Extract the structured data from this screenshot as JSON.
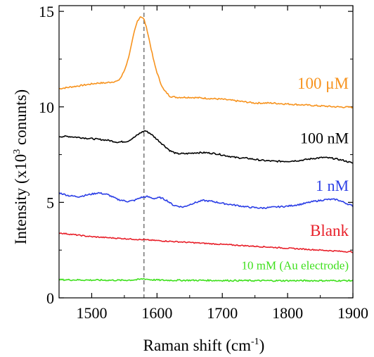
{
  "chart_data": {
    "type": "line",
    "xlabel": "Raman shift (cm",
    "xlabel_sup": "-1",
    "xlabel_end": ")",
    "ylabel": "Intensity (x10",
    "ylabel_sup": "3",
    "ylabel_end": "  conunts)",
    "xlim": [
      1450,
      1900
    ],
    "ylim": [
      0,
      15.3
    ],
    "xticks": [
      1500,
      1600,
      1700,
      1800,
      1900
    ],
    "yticks": [
      0,
      5,
      10,
      15
    ],
    "grid": false,
    "reference_line": {
      "x": 1580,
      "style": "dashed",
      "color": "#777777"
    },
    "series": [
      {
        "name": "100 μM",
        "color": "#f7931e",
        "x": [
          1450,
          1460,
          1470,
          1480,
          1490,
          1500,
          1510,
          1520,
          1530,
          1540,
          1545,
          1550,
          1555,
          1560,
          1565,
          1570,
          1575,
          1580,
          1585,
          1590,
          1595,
          1600,
          1605,
          1610,
          1620,
          1630,
          1650,
          1675,
          1700,
          1725,
          1750,
          1775,
          1800,
          1825,
          1850,
          1875,
          1900
        ],
        "y": [
          10.95,
          11.0,
          11.05,
          11.1,
          11.15,
          11.2,
          11.25,
          11.25,
          11.3,
          11.35,
          11.55,
          11.9,
          12.4,
          13.1,
          13.9,
          14.5,
          14.75,
          14.6,
          14.0,
          13.2,
          12.4,
          11.8,
          11.3,
          10.9,
          10.55,
          10.5,
          10.5,
          10.45,
          10.4,
          10.3,
          10.2,
          10.2,
          10.15,
          10.1,
          10.05,
          10.0,
          9.98
        ]
      },
      {
        "name": "100 nM",
        "color": "#000000",
        "x": [
          1450,
          1465,
          1480,
          1495,
          1510,
          1525,
          1540,
          1555,
          1565,
          1575,
          1582,
          1590,
          1600,
          1610,
          1620,
          1630,
          1645,
          1660,
          1675,
          1690,
          1705,
          1720,
          1740,
          1760,
          1780,
          1800,
          1820,
          1840,
          1855,
          1870,
          1885,
          1900
        ],
        "y": [
          8.45,
          8.45,
          8.4,
          8.35,
          8.3,
          8.25,
          8.15,
          8.2,
          8.4,
          8.65,
          8.75,
          8.6,
          8.3,
          8.0,
          7.7,
          7.55,
          7.55,
          7.6,
          7.6,
          7.55,
          7.45,
          7.35,
          7.3,
          7.2,
          7.15,
          7.15,
          7.2,
          7.3,
          7.35,
          7.3,
          7.2,
          7.05
        ]
      },
      {
        "name": "1 nM",
        "color": "#2b3ee6",
        "x": [
          1450,
          1465,
          1480,
          1495,
          1510,
          1525,
          1540,
          1555,
          1565,
          1575,
          1585,
          1595,
          1605,
          1615,
          1625,
          1640,
          1655,
          1670,
          1685,
          1700,
          1720,
          1740,
          1760,
          1780,
          1800,
          1820,
          1840,
          1860,
          1875,
          1890,
          1900
        ],
        "y": [
          5.5,
          5.35,
          5.3,
          5.4,
          5.5,
          5.4,
          5.15,
          5.05,
          5.1,
          5.25,
          5.3,
          5.2,
          5.25,
          5.1,
          4.85,
          4.75,
          4.95,
          5.1,
          5.05,
          4.95,
          4.85,
          4.75,
          4.7,
          4.75,
          4.8,
          4.9,
          5.05,
          5.15,
          5.15,
          4.95,
          4.8
        ]
      },
      {
        "name": "Blank",
        "color": "#e8202a",
        "x": [
          1450,
          1475,
          1500,
          1525,
          1550,
          1575,
          1600,
          1625,
          1650,
          1675,
          1700,
          1725,
          1750,
          1775,
          1800,
          1825,
          1850,
          1875,
          1900
        ],
        "y": [
          3.4,
          3.3,
          3.2,
          3.15,
          3.1,
          3.05,
          3.0,
          2.95,
          2.9,
          2.85,
          2.8,
          2.75,
          2.7,
          2.65,
          2.6,
          2.55,
          2.5,
          2.45,
          2.4
        ]
      },
      {
        "name": "10 mM (Au electrode)",
        "color": "#3ee01c",
        "x": [
          1450,
          1500,
          1550,
          1570,
          1580,
          1590,
          1610,
          1650,
          1700,
          1750,
          1800,
          1850,
          1900
        ],
        "y": [
          0.95,
          0.93,
          0.92,
          0.95,
          1.0,
          0.95,
          0.92,
          0.92,
          0.91,
          0.9,
          0.9,
          0.9,
          0.9
        ]
      }
    ]
  }
}
